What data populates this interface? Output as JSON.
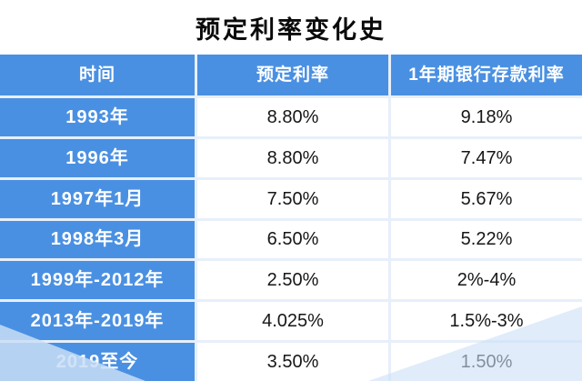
{
  "title": "预定利率变化史",
  "chart_data": {
    "type": "table",
    "title": "预定利率变化史",
    "columns": [
      "时间",
      "预定利率",
      "1年期银行存款利率"
    ],
    "rows": [
      [
        "1993年",
        "8.80%",
        "9.18%"
      ],
      [
        "1996年",
        "8.80%",
        "7.47%"
      ],
      [
        "1997年1月",
        "7.50%",
        "5.67%"
      ],
      [
        "1998年3月",
        "6.50%",
        "5.22%"
      ],
      [
        "1999年-2012年",
        "2.50%",
        "2%-4%"
      ],
      [
        "2013年-2019年",
        "4.025%",
        "1.5%-3%"
      ],
      [
        "2019至今",
        "3.50%",
        "1.50%"
      ]
    ]
  },
  "colors": {
    "header_blue": "#4a90e2",
    "separator_light_blue": "#e7effa",
    "text_dark": "#161616",
    "corner_decoration_blue": "#c9def6"
  }
}
